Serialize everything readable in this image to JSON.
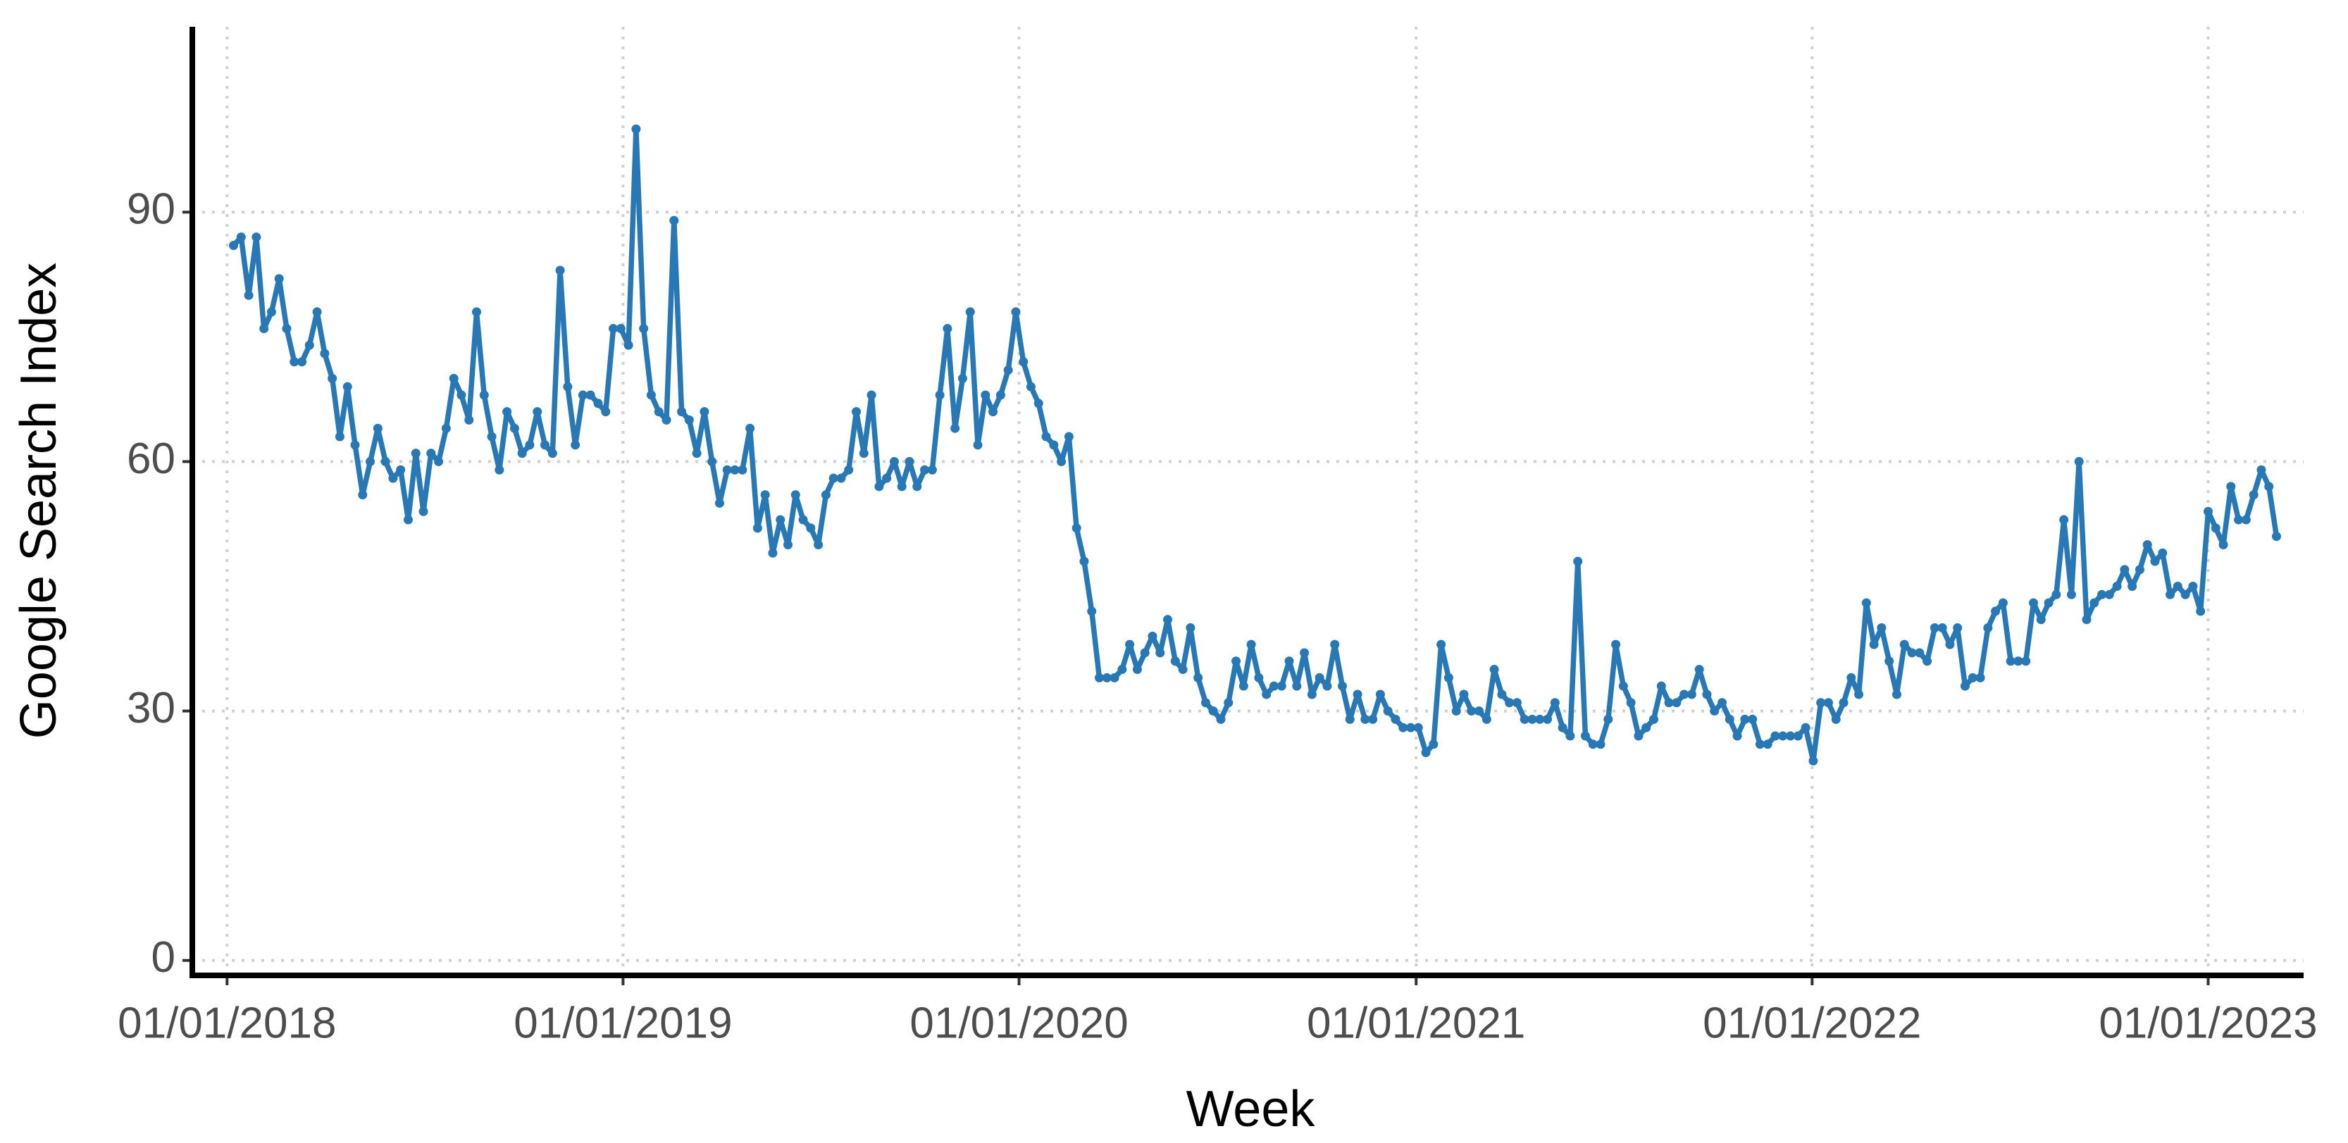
{
  "chart_data": {
    "type": "line",
    "xlabel": "Week",
    "ylabel": "Google Search Index",
    "xlim": [
      "2017-11-30",
      "2023-03-30"
    ],
    "xticks": [
      {
        "value": "2018-01-01",
        "label": "01/01/2018"
      },
      {
        "value": "2019-01-01",
        "label": "01/01/2019"
      },
      {
        "value": "2020-01-01",
        "label": "01/01/2020"
      },
      {
        "value": "2021-01-01",
        "label": "01/01/2021"
      },
      {
        "value": "2022-01-01",
        "label": "01/01/2022"
      },
      {
        "value": "2023-01-01",
        "label": "01/01/2023"
      }
    ],
    "ylim": [
      -1.8,
      112.3
    ],
    "yticks": [
      0,
      30,
      60,
      90
    ],
    "grid": true,
    "x": [
      "2018-01-07",
      "2018-01-14",
      "2018-01-21",
      "2018-01-28",
      "2018-02-04",
      "2018-02-11",
      "2018-02-18",
      "2018-02-25",
      "2018-03-04",
      "2018-03-11",
      "2018-03-18",
      "2018-03-25",
      "2018-04-01",
      "2018-04-08",
      "2018-04-15",
      "2018-04-22",
      "2018-04-29",
      "2018-05-06",
      "2018-05-13",
      "2018-05-20",
      "2018-05-27",
      "2018-06-03",
      "2018-06-10",
      "2018-06-17",
      "2018-06-24",
      "2018-07-01",
      "2018-07-08",
      "2018-07-15",
      "2018-07-22",
      "2018-07-29",
      "2018-08-05",
      "2018-08-12",
      "2018-08-19",
      "2018-08-26",
      "2018-09-02",
      "2018-09-09",
      "2018-09-16",
      "2018-09-23",
      "2018-09-30",
      "2018-10-07",
      "2018-10-14",
      "2018-10-21",
      "2018-10-28",
      "2018-11-04",
      "2018-11-11",
      "2018-11-18",
      "2018-11-25",
      "2018-12-02",
      "2018-12-09",
      "2018-12-16",
      "2018-12-23",
      "2018-12-30",
      "2019-01-06",
      "2019-01-13",
      "2019-01-20",
      "2019-01-27",
      "2019-02-03",
      "2019-02-10",
      "2019-02-17",
      "2019-02-24",
      "2019-03-03",
      "2019-03-10",
      "2019-03-17",
      "2019-03-24",
      "2019-03-31",
      "2019-04-07",
      "2019-04-14",
      "2019-04-21",
      "2019-04-28",
      "2019-05-05",
      "2019-05-12",
      "2019-05-19",
      "2019-05-26",
      "2019-06-02",
      "2019-06-09",
      "2019-06-16",
      "2019-06-23",
      "2019-06-30",
      "2019-07-07",
      "2019-07-14",
      "2019-07-21",
      "2019-07-28",
      "2019-08-04",
      "2019-08-11",
      "2019-08-18",
      "2019-08-25",
      "2019-09-01",
      "2019-09-08",
      "2019-09-15",
      "2019-09-22",
      "2019-09-29",
      "2019-10-06",
      "2019-10-13",
      "2019-10-20",
      "2019-10-27",
      "2019-11-03",
      "2019-11-10",
      "2019-11-17",
      "2019-11-24",
      "2019-12-01",
      "2019-12-08",
      "2019-12-15",
      "2019-12-22",
      "2019-12-29",
      "2020-01-05",
      "2020-01-12",
      "2020-01-19",
      "2020-01-26",
      "2020-02-02",
      "2020-02-09",
      "2020-02-16",
      "2020-02-23",
      "2020-03-01",
      "2020-03-08",
      "2020-03-15",
      "2020-03-22",
      "2020-03-29",
      "2020-04-05",
      "2020-04-12",
      "2020-04-19",
      "2020-04-26",
      "2020-05-03",
      "2020-05-10",
      "2020-05-17",
      "2020-05-24",
      "2020-05-31",
      "2020-06-07",
      "2020-06-14",
      "2020-06-21",
      "2020-06-28",
      "2020-07-05",
      "2020-07-12",
      "2020-07-19",
      "2020-07-26",
      "2020-08-02",
      "2020-08-09",
      "2020-08-16",
      "2020-08-23",
      "2020-08-30",
      "2020-09-06",
      "2020-09-13",
      "2020-09-20",
      "2020-09-27",
      "2020-10-04",
      "2020-10-11",
      "2020-10-18",
      "2020-10-25",
      "2020-11-01",
      "2020-11-08",
      "2020-11-15",
      "2020-11-22",
      "2020-11-29",
      "2020-12-06",
      "2020-12-13",
      "2020-12-20",
      "2020-12-27",
      "2021-01-03",
      "2021-01-10",
      "2021-01-17",
      "2021-01-24",
      "2021-01-31",
      "2021-02-07",
      "2021-02-14",
      "2021-02-21",
      "2021-02-28",
      "2021-03-07",
      "2021-03-14",
      "2021-03-21",
      "2021-03-28",
      "2021-04-04",
      "2021-04-11",
      "2021-04-18",
      "2021-04-25",
      "2021-05-02",
      "2021-05-09",
      "2021-05-16",
      "2021-05-23",
      "2021-05-30",
      "2021-06-06",
      "2021-06-13",
      "2021-06-20",
      "2021-06-27",
      "2021-07-04",
      "2021-07-11",
      "2021-07-18",
      "2021-07-25",
      "2021-08-01",
      "2021-08-08",
      "2021-08-15",
      "2021-08-22",
      "2021-08-29",
      "2021-09-05",
      "2021-09-12",
      "2021-09-19",
      "2021-09-26",
      "2021-10-03",
      "2021-10-10",
      "2021-10-17",
      "2021-10-24",
      "2021-10-31",
      "2021-11-07",
      "2021-11-14",
      "2021-11-21",
      "2021-11-28",
      "2021-12-05",
      "2021-12-12",
      "2021-12-19",
      "2021-12-26",
      "2022-01-02",
      "2022-01-09",
      "2022-01-16",
      "2022-01-23",
      "2022-01-30",
      "2022-02-06",
      "2022-02-13",
      "2022-02-20",
      "2022-02-27",
      "2022-03-06",
      "2022-03-13",
      "2022-03-20",
      "2022-03-27",
      "2022-04-03",
      "2022-04-10",
      "2022-04-17",
      "2022-04-24",
      "2022-05-01",
      "2022-05-08",
      "2022-05-15",
      "2022-05-22",
      "2022-05-29",
      "2022-06-05",
      "2022-06-12",
      "2022-06-19",
      "2022-06-26",
      "2022-07-03",
      "2022-07-10",
      "2022-07-17",
      "2022-07-24",
      "2022-07-31",
      "2022-08-07",
      "2022-08-14",
      "2022-08-21",
      "2022-08-28",
      "2022-09-04",
      "2022-09-11",
      "2022-09-18",
      "2022-09-25",
      "2022-10-02",
      "2022-10-09",
      "2022-10-16",
      "2022-10-23",
      "2022-10-30",
      "2022-11-06",
      "2022-11-13",
      "2022-11-20",
      "2022-11-27",
      "2022-12-04",
      "2022-12-11",
      "2022-12-18",
      "2022-12-25",
      "2023-01-01",
      "2023-01-08",
      "2023-01-15",
      "2023-01-22",
      "2023-01-29",
      "2023-02-05",
      "2023-02-12",
      "2023-02-19",
      "2023-02-26",
      "2023-03-05"
    ],
    "series": [
      {
        "color": "#2878b5",
        "values": [
          86,
          87,
          80,
          87,
          76,
          78,
          82,
          76,
          72,
          72,
          74,
          78,
          73,
          70,
          63,
          69,
          62,
          56,
          60,
          64,
          60,
          58,
          59,
          53,
          61,
          54,
          61,
          60,
          64,
          70,
          68,
          65,
          78,
          68,
          63,
          59,
          66,
          64,
          61,
          62,
          66,
          62,
          61,
          83,
          69,
          62,
          68,
          68,
          67,
          66,
          76,
          76,
          74,
          100,
          76,
          68,
          66,
          65,
          89,
          66,
          65,
          61,
          66,
          60,
          55,
          59,
          59,
          59,
          64,
          52,
          56,
          49,
          53,
          50,
          56,
          53,
          52,
          50,
          56,
          58,
          58,
          59,
          66,
          61,
          68,
          57,
          58,
          60,
          57,
          60,
          57,
          59,
          59,
          68,
          76,
          64,
          70,
          78,
          62,
          68,
          66,
          68,
          71,
          78,
          72,
          69,
          67,
          63,
          62,
          60,
          63,
          52,
          48,
          42,
          34,
          34,
          34,
          35,
          38,
          35,
          37,
          39,
          37,
          41,
          36,
          35,
          40,
          34,
          31,
          30,
          29,
          31,
          36,
          33,
          38,
          34,
          32,
          33,
          33,
          36,
          33,
          37,
          32,
          34,
          33,
          38,
          33,
          29,
          32,
          29,
          29,
          32,
          30,
          29,
          28,
          28,
          28,
          25,
          26,
          38,
          34,
          30,
          32,
          30,
          30,
          29,
          35,
          32,
          31,
          31,
          29,
          29,
          29,
          29,
          31,
          28,
          27,
          48,
          27,
          26,
          26,
          29,
          38,
          33,
          31,
          27,
          28,
          29,
          33,
          31,
          31,
          32,
          32,
          35,
          32,
          30,
          31,
          29,
          27,
          29,
          29,
          26,
          26,
          27,
          27,
          27,
          27,
          28,
          24,
          31,
          31,
          29,
          31,
          34,
          32,
          43,
          38,
          40,
          36,
          32,
          38,
          37,
          37,
          36,
          40,
          40,
          38,
          40,
          33,
          34,
          34,
          40,
          42,
          43,
          36,
          36,
          36,
          43,
          41,
          43,
          44,
          53,
          44,
          60,
          41,
          43,
          44,
          44,
          45,
          47,
          45,
          47,
          50,
          48,
          49,
          44,
          45,
          44,
          45,
          42,
          54,
          52,
          50,
          57,
          53,
          53,
          56,
          59,
          57,
          51
        ]
      }
    ]
  }
}
